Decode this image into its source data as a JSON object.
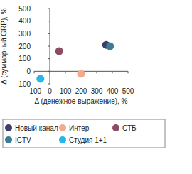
{
  "chart_data": {
    "type": "scatter",
    "x_label": "Δ (денежное выражение), %",
    "y_label": "Δ (суммарный GRP), %",
    "xlim": [
      -100,
      500
    ],
    "xticks": [
      -100,
      0,
      100,
      200,
      300,
      400,
      500
    ],
    "ylim": [
      -100,
      500
    ],
    "yticks": [
      -100,
      0,
      100,
      200,
      300,
      400,
      500
    ],
    "grid": false,
    "legend": "bottom",
    "marker": "circle",
    "series": [
      {
        "name": "Новый канал",
        "color": "#3d3f6b",
        "x": [
          360
        ],
        "values": [
          210
        ]
      },
      {
        "name": "Интер",
        "color": "#f2a98c",
        "x": [
          200
        ],
        "values": [
          -20
        ]
      },
      {
        "name": "СТБ",
        "color": "#8c4d63",
        "x": [
          60
        ],
        "values": [
          160
        ]
      },
      {
        "name": "ICTV",
        "color": "#3b7d98",
        "x": [
          385
        ],
        "values": [
          200
        ]
      },
      {
        "name": "Студия 1+1",
        "color": "#2ab5e8",
        "x": [
          -60
        ],
        "values": [
          -60
        ]
      }
    ]
  }
}
